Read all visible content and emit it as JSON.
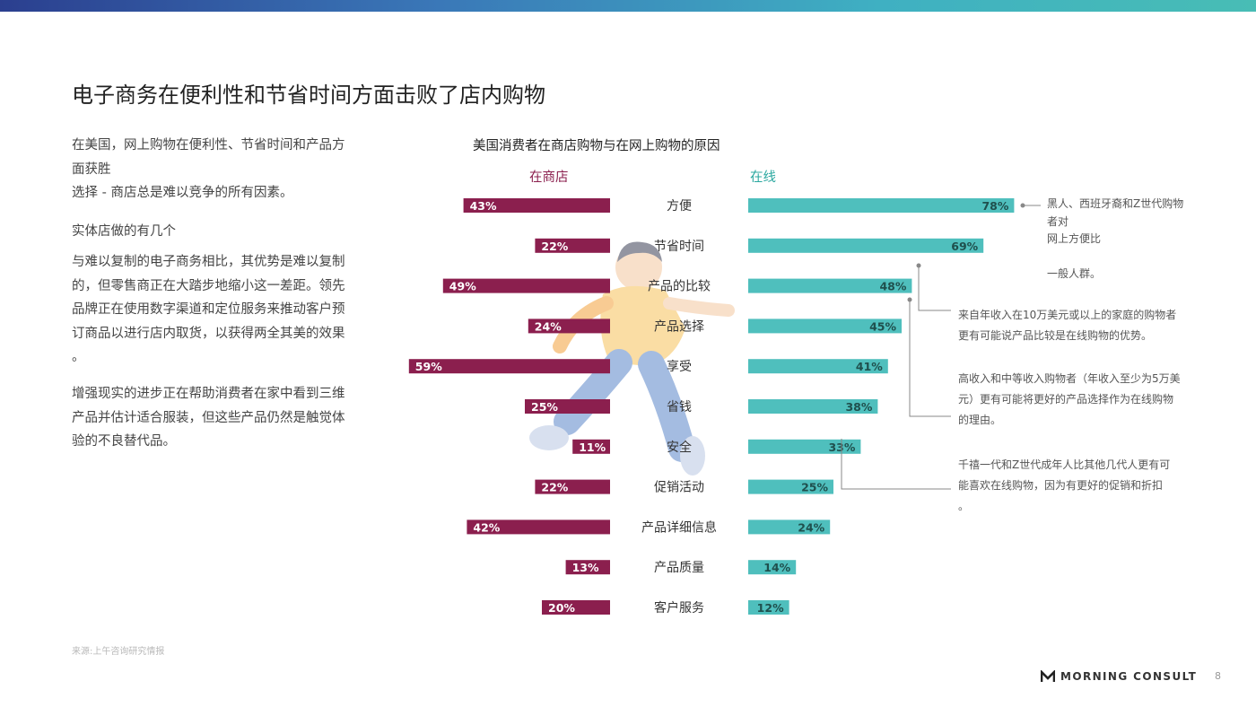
{
  "page": {
    "title": "电子商务在便利性和节省时间方面击败了店内购物",
    "left_text": [
      "在美国，网上购物在便利性、节省时间和产品方",
      "面获胜",
      "选择 - 商店总是难以竞争的所有因素。",
      "实体店做的有几个",
      "与难以复制的电子商务相比，其优势是难以复制",
      "的，但零售商正在大踏步地缩小这一差距。领先",
      "品牌正在使用数字渠道和定位服务来推动客户预",
      "订商品以进行店内取货，以获得两全其美的效果",
      "。",
      "增强现实的进步正在帮助消费者在家中看到三维",
      "产品并估计适合服装，但这些产品仍然是触觉体",
      "验的不良替代品。"
    ],
    "source": "来源:上午咨询研究情报",
    "logo": "MORNING CONSULT",
    "page_number": "8"
  },
  "notes": {
    "note1": [
      "黑人、西班牙裔和Z世代购物",
      "者对",
      "网上方便比",
      "",
      "一般人群。"
    ],
    "note2": [
      "来自年收入在10万美元或以上的家庭的购物者",
      "更有可能说产品比较是在线购物的优势。"
    ],
    "note3": [
      "高收入和中等收入购物者（年收入至少为5万美",
      "元）更有可能将更好的产品选择作为在线购物",
      "的理由。"
    ],
    "note4": [
      "千禧一代和Z世代成年人比其他几代人更有可",
      "能喜欢在线购物，因为有更好的促销和折扣",
      "。"
    ]
  },
  "chart_data": {
    "type": "bar",
    "title": "美国消费者在商店购物与在网上购物的原因",
    "categories": [
      "方便",
      "节省时间",
      "产品的比较",
      "产品选择",
      "享受",
      "省钱",
      "安全",
      "促销活动",
      "产品详细信息",
      "产品质量",
      "客户服务"
    ],
    "series": [
      {
        "name": "在商店",
        "color": "#8b1f4e",
        "values": [
          43,
          22,
          49,
          24,
          59,
          25,
          11,
          22,
          42,
          13,
          20
        ]
      },
      {
        "name": "在线",
        "color": "#4fbfbd",
        "values": [
          78,
          69,
          48,
          45,
          41,
          38,
          33,
          25,
          24,
          14,
          12
        ]
      }
    ],
    "value_suffix": "%",
    "xlim": [
      0,
      100
    ],
    "grid": false,
    "legend": "top"
  }
}
